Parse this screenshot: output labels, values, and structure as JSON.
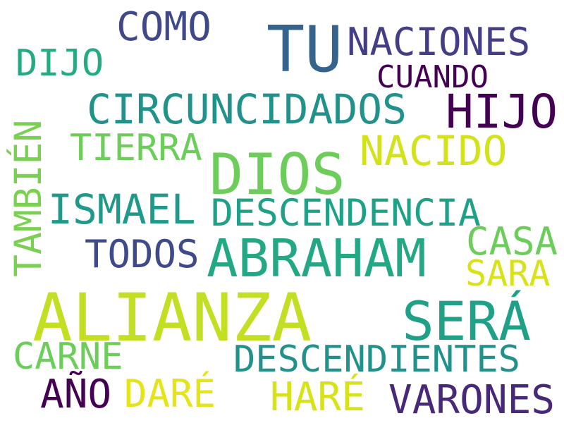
{
  "words": {
    "tu": {
      "text": "TU",
      "color": "#34638d"
    },
    "como": {
      "text": "COMO",
      "color": "#3f4889"
    },
    "naciones": {
      "text": "NACIONES",
      "color": "#433e85"
    },
    "dijo": {
      "text": "DIJO",
      "color": "#25ab82"
    },
    "cuando": {
      "text": "CUANDO",
      "color": "#440154"
    },
    "circuncidados": {
      "text": "CIRCUNCIDADOS",
      "color": "#21918c"
    },
    "hijo": {
      "text": "HIJO",
      "color": "#440154"
    },
    "tambien": {
      "text": "TAMBIÉN",
      "color": "#7ad151"
    },
    "tierra": {
      "text": "TIERRA",
      "color": "#6ccd5a"
    },
    "dios": {
      "text": "DIOS",
      "color": "#6ccd5a"
    },
    "nacido": {
      "text": "NACIDO",
      "color": "#d2e21b"
    },
    "ismael": {
      "text": "ISMAEL",
      "color": "#1f9a8a"
    },
    "descendencia": {
      "text": "DESCENDENCIA",
      "color": "#1fa187"
    },
    "casa": {
      "text": "CASA",
      "color": "#6ccd5a"
    },
    "todos": {
      "text": "TODOS",
      "color": "#3e4a89"
    },
    "abraham": {
      "text": "ABRAHAM",
      "color": "#22a884"
    },
    "sara": {
      "text": "SARA",
      "color": "#d8e219"
    },
    "alianza": {
      "text": "ALIANZA",
      "color": "#c2df23"
    },
    "sera": {
      "text": "SERÁ",
      "color": "#1fa187"
    },
    "carne": {
      "text": "CARNE",
      "color": "#6ccd5a"
    },
    "descendientes": {
      "text": "DESCENDIENTES",
      "color": "#21918c"
    },
    "ano": {
      "text": "AÑO",
      "color": "#440154"
    },
    "dare": {
      "text": "DARÉ",
      "color": "#e5e419"
    },
    "hare": {
      "text": "HARÉ",
      "color": "#d8e219"
    },
    "varones": {
      "text": "VARONES",
      "color": "#482878"
    }
  }
}
